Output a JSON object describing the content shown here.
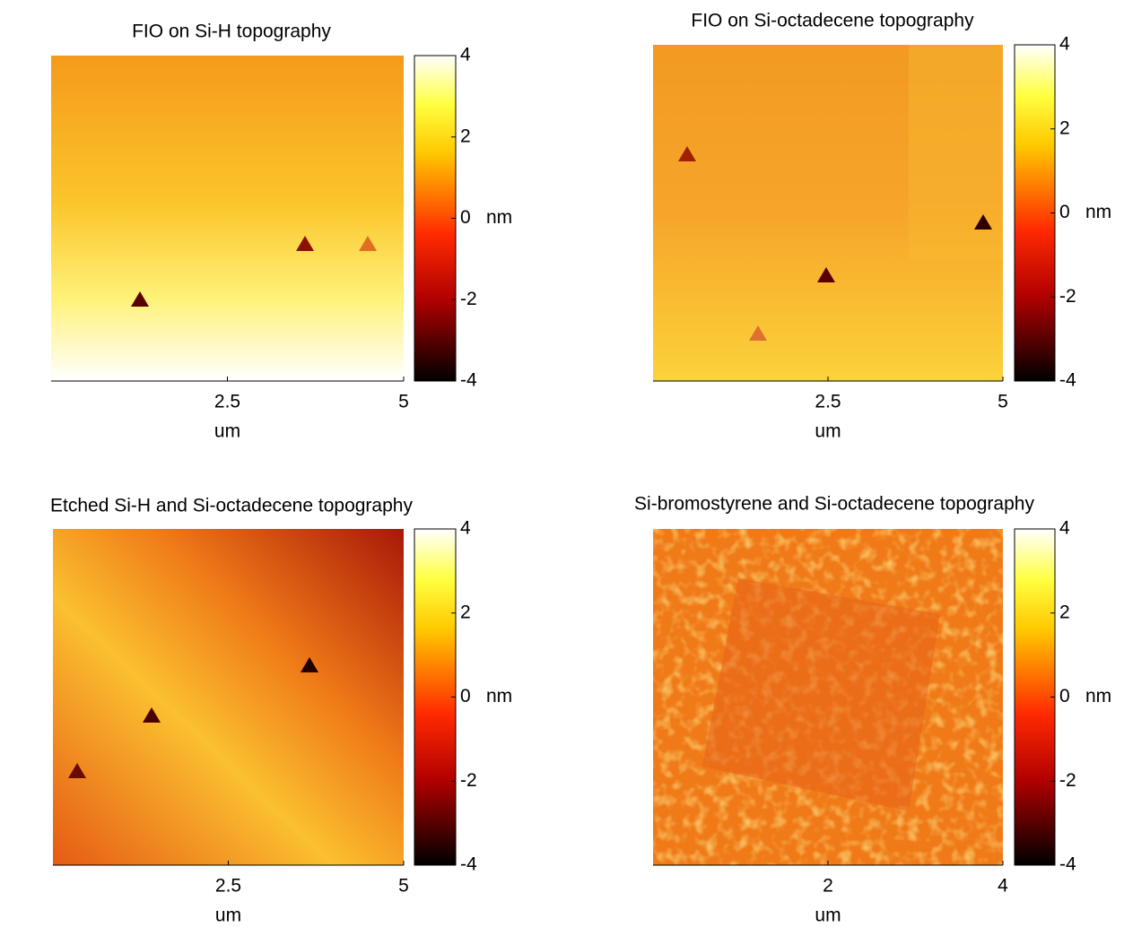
{
  "chart_data": [
    {
      "type": "image",
      "title": "FIO on Si-H topography",
      "xlabel": "um",
      "xlim": [
        0,
        5
      ],
      "xticks": [
        2.5,
        5
      ],
      "colormap": "hot",
      "clim": [
        -4,
        4
      ],
      "cticks": [
        -4,
        -2,
        0,
        2,
        4
      ],
      "clabel": "nm"
    },
    {
      "type": "image",
      "title": "FIO on Si-octadecene topography",
      "xlabel": "um",
      "xlim": [
        0,
        5
      ],
      "xticks": [
        2.5,
        5
      ],
      "colormap": "hot",
      "clim": [
        -4,
        4
      ],
      "cticks": [
        -4,
        -2,
        0,
        2,
        4
      ],
      "clabel": "nm"
    },
    {
      "type": "image",
      "title": "Etched Si-H and Si-octadecene topography",
      "xlabel": "um",
      "xlim": [
        0,
        5
      ],
      "xticks": [
        2.5,
        5
      ],
      "colormap": "hot",
      "clim": [
        -4,
        4
      ],
      "cticks": [
        -4,
        -2,
        0,
        2,
        4
      ],
      "clabel": "nm"
    },
    {
      "type": "image",
      "title": "Si-bromostyrene and Si-octadecene topography",
      "xlabel": "um",
      "xlim": [
        0,
        4
      ],
      "xticks": [
        2,
        4
      ],
      "colormap": "hot",
      "clim": [
        -4,
        4
      ],
      "cticks": [
        -4,
        -2,
        0,
        2,
        4
      ],
      "clabel": "nm"
    }
  ]
}
